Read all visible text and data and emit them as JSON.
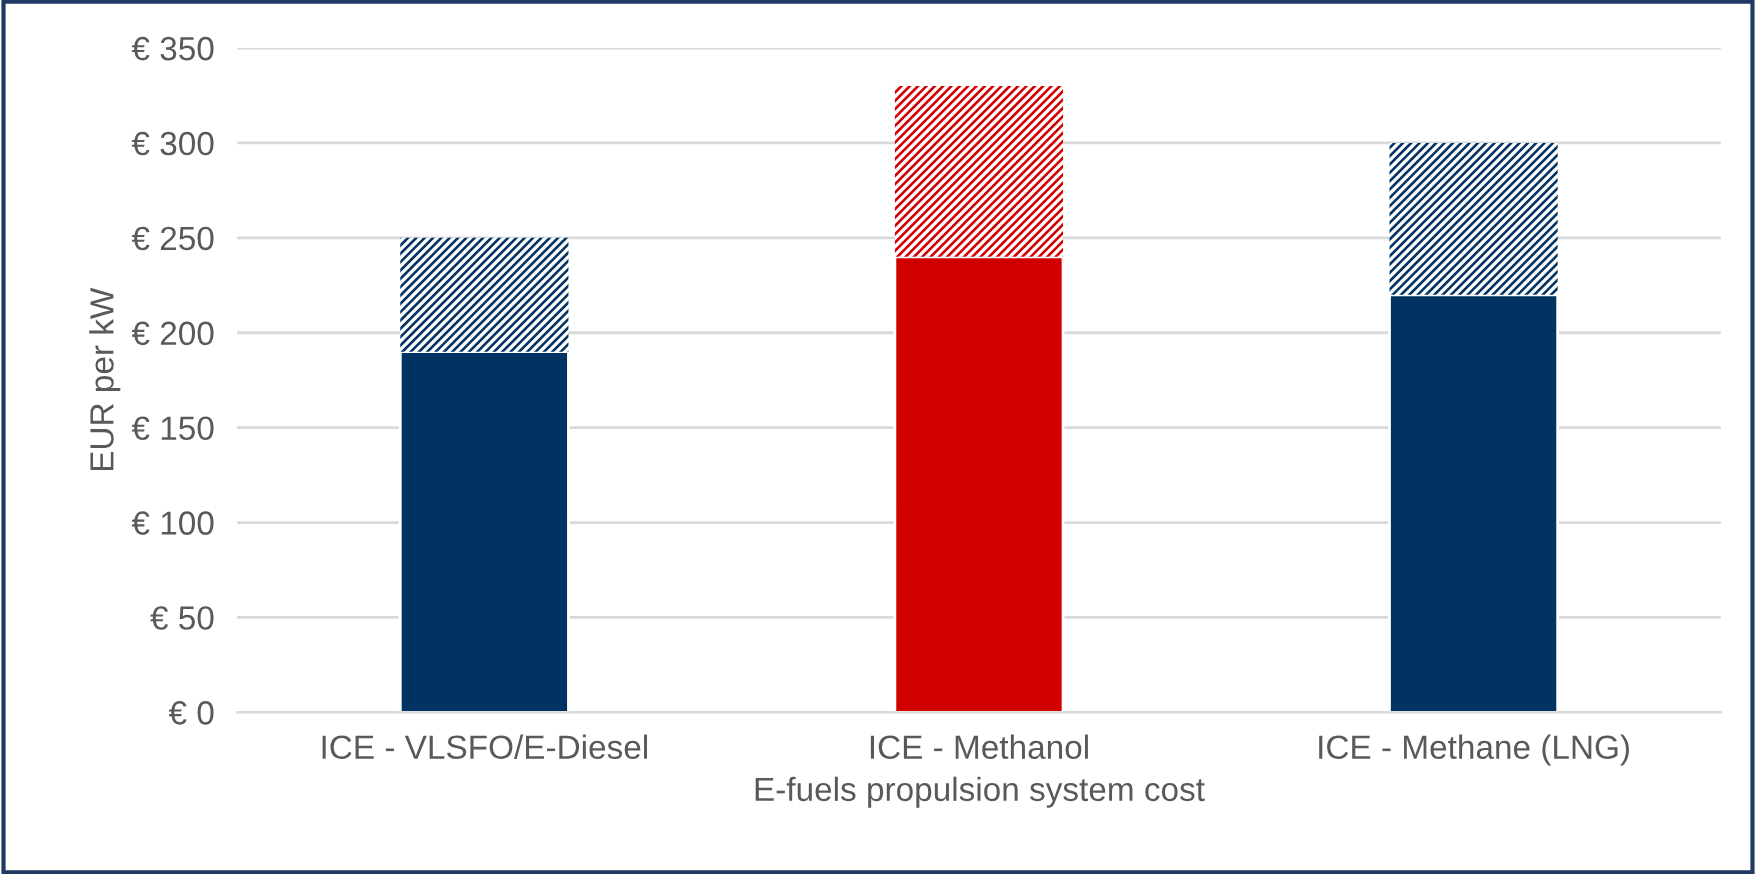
{
  "chart_data": {
    "type": "bar",
    "stacked": true,
    "xlabel": "E-fuels propulsion system cost",
    "ylabel": "EUR per kW",
    "categories": [
      "ICE - VLSFO/E-Diesel",
      "ICE - Methanol",
      "ICE - Methane (LNG)"
    ],
    "series": [
      {
        "colors": [
          "#003362",
          "#d00000",
          "#003362"
        ],
        "values": [
          190,
          240,
          220
        ]
      },
      {
        "colors": [
          "#003362",
          "#d00000",
          "#003362"
        ],
        "values": [
          60,
          90,
          80
        ]
      }
    ],
    "ylim": [
      0,
      350
    ],
    "yticks": [
      {
        "value": 0,
        "label": "€ 0"
      },
      {
        "value": 50,
        "label": "€ 50"
      },
      {
        "value": 100,
        "label": "€ 100"
      },
      {
        "value": 150,
        "label": "€ 150"
      },
      {
        "value": 200,
        "label": "€ 200"
      },
      {
        "value": 250,
        "label": "€ 250"
      },
      {
        "value": 300,
        "label": "€ 300"
      },
      {
        "value": 350,
        "label": "€ 350"
      }
    ],
    "grid": "y",
    "legend": false
  }
}
